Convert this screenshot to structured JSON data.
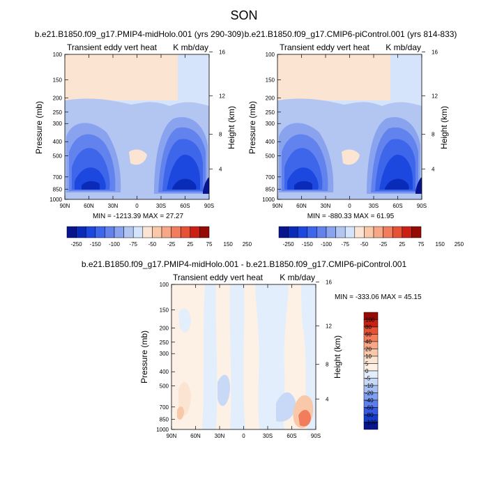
{
  "page_title": "SON",
  "chart_data": [
    {
      "type": "heatmap",
      "title": "b.e21.B1850.f09_g17.PMIP4-midHolo.001 (yrs 290-309)",
      "subtitle_left": "Transient eddy vert heat",
      "subtitle_right": "K mb/day",
      "ylabel": "Pressure (mb)",
      "ylabel_right": "Height (km)",
      "x_ticks": [
        "90N",
        "60N",
        "30N",
        "0",
        "30S",
        "60S",
        "90S"
      ],
      "y_ticks": [
        "100",
        "150",
        "200",
        "250",
        "300",
        "400",
        "500",
        "700",
        "850",
        "1000"
      ],
      "y_ticks_right": [
        "16",
        "12",
        "8",
        "4"
      ],
      "stats": "MIN = -1213.39  MAX =  27.27",
      "colorbar": {
        "labels": [
          "-250",
          "-150",
          "-100",
          "-75",
          "-50",
          "-25",
          "25",
          "75",
          "150",
          "250"
        ],
        "colors": [
          "#08158f",
          "#0a2bb8",
          "#1d48e0",
          "#3d66ea",
          "#6283ee",
          "#8aa3ef",
          "#b3c6f2",
          "#d6e4fb",
          "#fbe4d2",
          "#f9c8a8",
          "#f7a687",
          "#f27d5d",
          "#e55235",
          "#c82014",
          "#960a05"
        ]
      }
    },
    {
      "type": "heatmap",
      "title": "b.e21.B1850.f09_g17.CMIP6-piControl.001 (yrs 814-833)",
      "subtitle_left": "Transient eddy vert heat",
      "subtitle_right": "K mb/day",
      "ylabel": "Pressure (mb)",
      "ylabel_right": "Height (km)",
      "x_ticks": [
        "90N",
        "60N",
        "30N",
        "0",
        "30S",
        "60S",
        "90S"
      ],
      "y_ticks": [
        "100",
        "150",
        "200",
        "250",
        "300",
        "400",
        "500",
        "700",
        "850",
        "1000"
      ],
      "y_ticks_right": [
        "16",
        "12",
        "8",
        "4"
      ],
      "stats": "MIN = -880.33  MAX =  61.95",
      "colorbar": {
        "labels": [
          "-250",
          "-150",
          "-100",
          "-75",
          "-50",
          "-25",
          "25",
          "75",
          "150",
          "250"
        ],
        "colors": [
          "#08158f",
          "#0a2bb8",
          "#1d48e0",
          "#3d66ea",
          "#6283ee",
          "#8aa3ef",
          "#b3c6f2",
          "#d6e4fb",
          "#fbe4d2",
          "#f9c8a8",
          "#f7a687",
          "#f27d5d",
          "#e55235",
          "#c82014",
          "#960a05"
        ]
      }
    },
    {
      "type": "heatmap",
      "title": "b.e21.B1850.f09_g17.PMIP4-midHolo.001 - b.e21.B1850.f09_g17.CMIP6-piControl.001",
      "subtitle_left": "Transient eddy vert heat",
      "subtitle_right": "K mb/day",
      "ylabel": "Pressure (mb)",
      "ylabel_right": "Height (km)",
      "x_ticks": [
        "90N",
        "60N",
        "30N",
        "0",
        "30S",
        "60S",
        "90S"
      ],
      "y_ticks": [
        "100",
        "150",
        "200",
        "250",
        "300",
        "400",
        "500",
        "700",
        "850",
        "1000"
      ],
      "y_ticks_right": [
        "16",
        "12",
        "8",
        "4"
      ],
      "stats": "MIN = -333.06  MAX =  45.15",
      "colorbar": {
        "labels": [
          "100",
          "80",
          "60",
          "40",
          "20",
          "10",
          "5",
          "0",
          "-5",
          "-10",
          "-20",
          "-40",
          "-60",
          "-80",
          "-100"
        ],
        "colors": [
          "#960a05",
          "#c82014",
          "#e55235",
          "#f27d5d",
          "#f7a687",
          "#f9c8a8",
          "#fbe4d2",
          "#fdf1e6",
          "#e3eefc",
          "#c8d9f7",
          "#a6bff2",
          "#819ff0",
          "#5d7fec",
          "#3659e3",
          "#163ccb",
          "#08158f"
        ]
      }
    }
  ]
}
